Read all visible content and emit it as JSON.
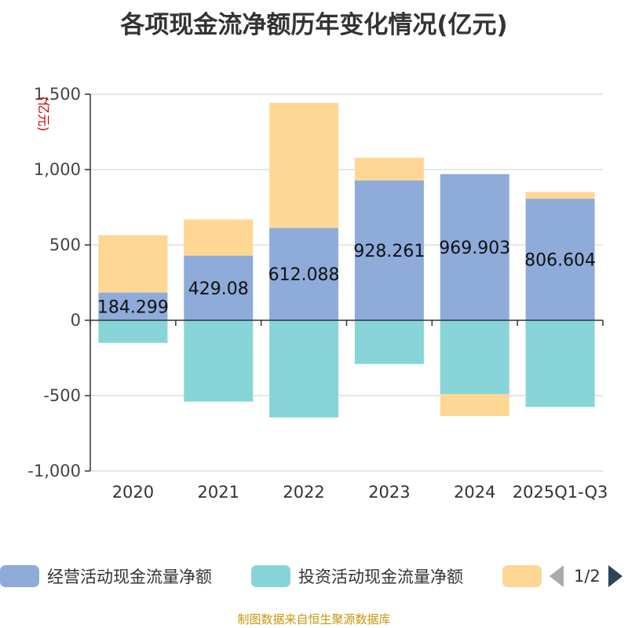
{
  "chart_data": {
    "type": "bar",
    "stacked": true,
    "title": "各项现金流净额历年变化情况(亿元)",
    "ylabel": "(亿元)",
    "xlabel": "",
    "ylim": [
      -1000,
      1500
    ],
    "yticks": [
      -1000,
      -500,
      0,
      500,
      1000,
      1500
    ],
    "ytick_labels": [
      "-1,000",
      "-500",
      "0",
      "500",
      "1,000",
      "1,500"
    ],
    "categories": [
      "2020",
      "2021",
      "2022",
      "2023",
      "2024",
      "2025Q1-Q3"
    ],
    "grid": true,
    "series": [
      {
        "name": "经营活动现金流量净额",
        "color": "#8eabd9",
        "values": [
          184.299,
          429.08,
          612.088,
          928.261,
          969.903,
          806.604
        ],
        "labels": [
          "184.299",
          "429.08",
          "612.088",
          "928.261",
          "969.903",
          "806.604"
        ]
      },
      {
        "name": "投资活动现金流量净额",
        "color": "#87d5d8",
        "values": [
          -150,
          -540,
          -645,
          -290,
          -490,
          -575
        ]
      },
      {
        "name": "",
        "color": "#fed795",
        "values": [
          380,
          240,
          830,
          150,
          -145,
          45
        ]
      }
    ]
  },
  "legend": {
    "items": [
      {
        "label": "经营活动现金流量净额",
        "color": "#8eabd9"
      },
      {
        "label": "投资活动现金流量净额",
        "color": "#87d5d8"
      },
      {
        "label": "",
        "color": "#fed795"
      }
    ],
    "page": "1/2"
  },
  "source_note": "制图数据来自恒生聚源数据库"
}
